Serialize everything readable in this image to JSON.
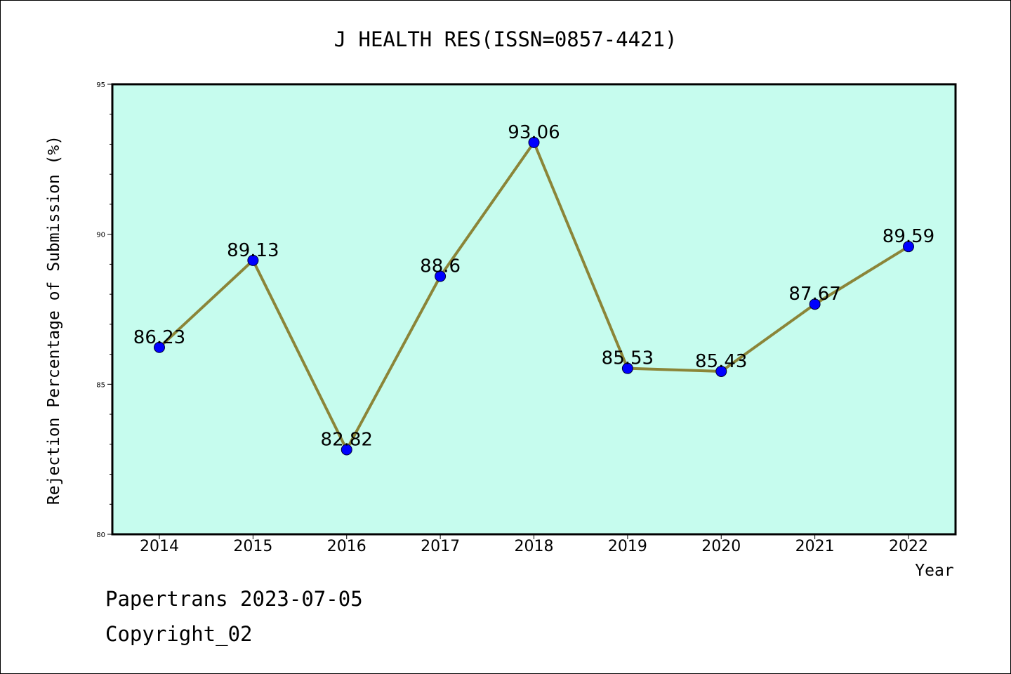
{
  "chart_data": {
    "type": "line",
    "title": "J HEALTH RES(ISSN=0857-4421)",
    "xlabel": "Year",
    "ylabel": "Rejection Percentage of Submission (%)",
    "categories": [
      "2014",
      "2015",
      "2016",
      "2017",
      "2018",
      "2019",
      "2020",
      "2021",
      "2022"
    ],
    "values": [
      86.23,
      89.13,
      82.82,
      88.6,
      93.06,
      85.53,
      85.43,
      87.67,
      89.59
    ],
    "data_labels": [
      "86.23",
      "89.13",
      "82.82",
      "88.6",
      "93.06",
      "85.53",
      "85.43",
      "87.67",
      "89.59"
    ],
    "ylim": [
      80,
      95
    ],
    "y_ticks": [
      "80",
      "85",
      "90",
      "95"
    ],
    "grid": false,
    "colors": {
      "plot_background": "#c6fcee",
      "line": "#8b8538",
      "marker": "#0000ff"
    }
  },
  "footer": {
    "line1": "Papertrans 2023-07-05",
    "line2": "Copyright_02"
  }
}
